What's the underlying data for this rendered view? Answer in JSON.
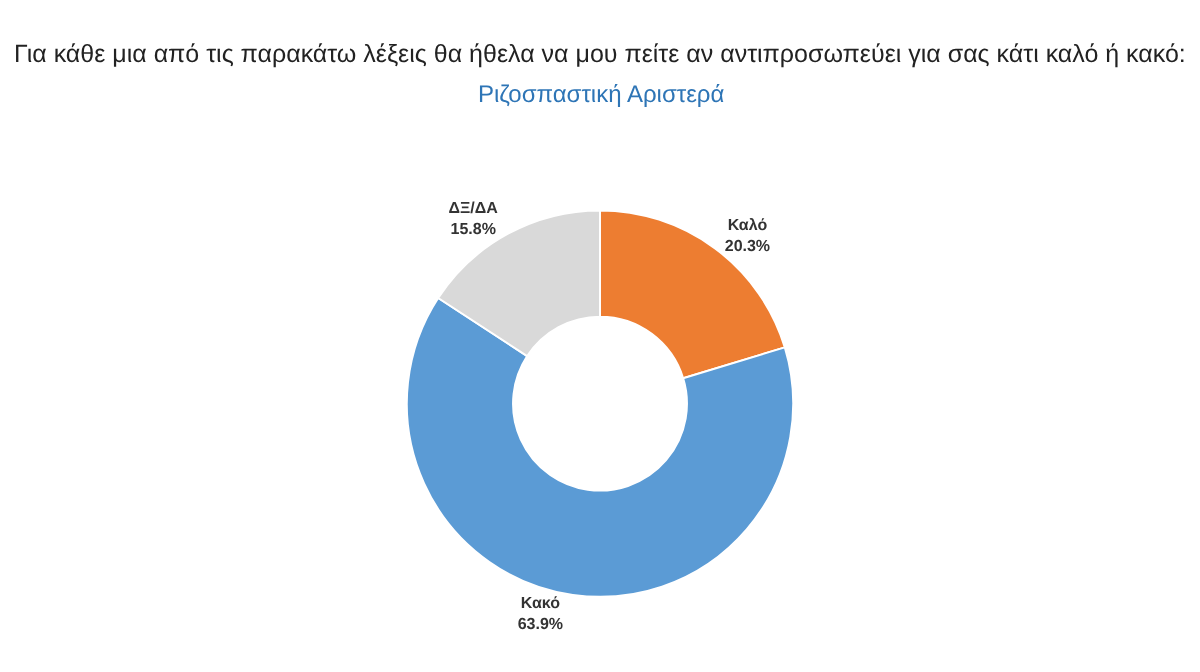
{
  "chart_data": {
    "type": "donut",
    "title": "Για κάθε μια από τις παρακάτω λέξεις θα ήθελα να μου πείτε αν αντιπροσωπεύει για σας κάτι καλό ή κακό:",
    "subtitle": "Ριζοσπαστική Αριστερά",
    "categories": [
      "Καλό",
      "Κακό",
      "ΔΞ/ΔΑ"
    ],
    "values": [
      20.3,
      63.9,
      15.8
    ],
    "colors": [
      "#ed7d31",
      "#5b9bd5",
      "#d9d9d9"
    ],
    "value_labels": [
      "20.3%",
      "63.9%",
      "15.8%"
    ],
    "legend": false
  }
}
